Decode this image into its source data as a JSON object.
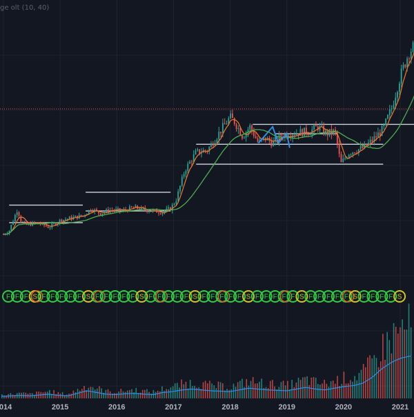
{
  "indicator_label": "ge olt (10, 40)",
  "colors": {
    "background": "#131722",
    "grid": "#1f2330",
    "axis_text": "#b2b5be",
    "candle_up": "#26a69a",
    "candle_down": "#ef5350",
    "ma_fast": "#e8732c",
    "ma_slow": "#4caf50",
    "sr_lines": "#d1d4dc",
    "pattern": "#2f8fe8",
    "hline": "#ef5350",
    "volume_line": "#2f8fe8",
    "signal_f": "#2ecc40",
    "signal_s": "#d4c31c",
    "signal_mixed": "#e05a24"
  },
  "chart_data": {
    "type": "candlestick",
    "title": "",
    "xlabel": "",
    "ylabel": "",
    "x_ticks": [
      "2014",
      "2015",
      "2016",
      "2017",
      "2018",
      "2019",
      "2020",
      "2021"
    ],
    "x_range": [
      2014.0,
      2021.5
    ],
    "grid": true,
    "price_relative": {
      "points": [
        [
          2014.0,
          0.0
        ],
        [
          2014.1,
          0.03
        ],
        [
          2014.25,
          0.22
        ],
        [
          2014.3,
          0.12
        ],
        [
          2014.4,
          0.08
        ],
        [
          2014.6,
          0.1
        ],
        [
          2014.8,
          0.06
        ],
        [
          2015.0,
          0.12
        ],
        [
          2015.2,
          0.14
        ],
        [
          2015.4,
          0.16
        ],
        [
          2015.55,
          0.22
        ],
        [
          2015.7,
          0.18
        ],
        [
          2015.9,
          0.21
        ],
        [
          2016.1,
          0.2
        ],
        [
          2016.3,
          0.23
        ],
        [
          2016.5,
          0.21
        ],
        [
          2016.8,
          0.19
        ],
        [
          2016.95,
          0.22
        ],
        [
          2017.05,
          0.3
        ],
        [
          2017.2,
          0.55
        ],
        [
          2017.4,
          0.7
        ],
        [
          2017.6,
          0.72
        ],
        [
          2017.85,
          0.9
        ],
        [
          2018.0,
          1.0
        ],
        [
          2018.08,
          0.96
        ],
        [
          2018.22,
          0.84
        ],
        [
          2018.35,
          0.92
        ],
        [
          2018.5,
          0.78
        ],
        [
          2018.62,
          0.82
        ],
        [
          2018.75,
          0.78
        ],
        [
          2018.9,
          0.84
        ],
        [
          2019.0,
          0.86
        ],
        [
          2019.2,
          0.87
        ],
        [
          2019.4,
          0.88
        ],
        [
          2019.55,
          0.92
        ],
        [
          2019.7,
          0.86
        ],
        [
          2019.85,
          0.88
        ],
        [
          2019.95,
          0.6
        ],
        [
          2020.1,
          0.7
        ],
        [
          2020.35,
          0.74
        ],
        [
          2020.5,
          0.8
        ],
        [
          2020.7,
          0.9
        ],
        [
          2020.85,
          1.08
        ],
        [
          2021.0,
          1.35
        ],
        [
          2021.15,
          1.55
        ],
        [
          2021.3,
          1.65
        ],
        [
          2021.5,
          1.6
        ]
      ]
    },
    "moving_averages": [
      {
        "name": "",
        "color": "#e8732c"
      },
      {
        "name": "",
        "color": "#4caf50"
      }
    ],
    "support_resistance_levels": [
      {
        "x0": 2014.1,
        "x1": 2015.4,
        "y": 0.25
      },
      {
        "x0": 2014.1,
        "x1": 2015.4,
        "y": 0.1
      },
      {
        "x0": 2015.45,
        "x1": 2016.95,
        "y": 0.36
      },
      {
        "x0": 2015.45,
        "x1": 2016.95,
        "y": 0.2
      },
      {
        "x0": 2017.4,
        "x1": 2020.7,
        "y": 0.77
      },
      {
        "x0": 2018.4,
        "x1": 2021.5,
        "y": 0.94
      },
      {
        "x0": 2018.8,
        "x1": 2019.9,
        "y": 0.86
      },
      {
        "x0": 2017.4,
        "x1": 2020.7,
        "y": 0.6
      }
    ],
    "signals": [
      "F",
      "F",
      "F",
      "S",
      "F",
      "F",
      "F",
      "F",
      "F",
      "S",
      "F",
      "F",
      "F",
      "F",
      "F",
      "S",
      "F",
      "F",
      "F",
      "F",
      "F",
      "S",
      "F",
      "F",
      "F",
      "F",
      "F",
      "S",
      "F",
      "F",
      "F",
      "F",
      "F",
      "S",
      "F",
      "F",
      "F",
      "F",
      "F",
      "S",
      "F",
      "F",
      "F",
      "F",
      "S"
    ],
    "volume_relative": [
      0.05,
      0.06,
      0.07,
      0.06,
      0.08,
      0.1,
      0.07,
      0.06,
      0.12,
      0.18,
      0.14,
      0.1,
      0.09,
      0.11,
      0.12,
      0.1,
      0.09,
      0.14,
      0.16,
      0.2,
      0.22,
      0.2,
      0.18,
      0.17,
      0.16,
      0.2,
      0.24,
      0.22,
      0.2,
      0.19,
      0.18,
      0.22,
      0.26,
      0.22,
      0.2,
      0.24,
      0.28,
      0.3,
      0.36,
      0.5,
      0.7,
      0.85,
      0.95,
      1.0
    ]
  }
}
